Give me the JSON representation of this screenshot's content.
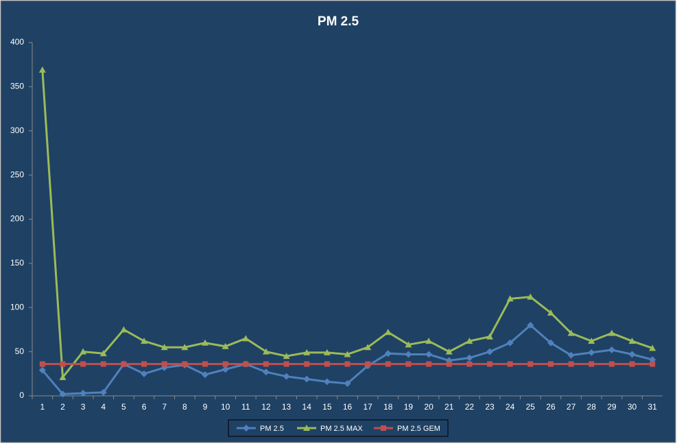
{
  "chart_data": {
    "type": "line",
    "title": "PM 2.5",
    "categories": [
      "1",
      "2",
      "3",
      "4",
      "5",
      "6",
      "7",
      "8",
      "9",
      "10",
      "11",
      "12",
      "13",
      "14",
      "15",
      "16",
      "17",
      "18",
      "19",
      "20",
      "21",
      "22",
      "23",
      "24",
      "25",
      "26",
      "27",
      "28",
      "29",
      "30",
      "31"
    ],
    "series": [
      {
        "name": "PM 2.5",
        "color": "#4f81bd",
        "marker": "diamond",
        "values": [
          29,
          2,
          3,
          4,
          36,
          25,
          32,
          35,
          24,
          30,
          36,
          27,
          22,
          19,
          16,
          14,
          34,
          48,
          47,
          47,
          40,
          43,
          50,
          60,
          80,
          60,
          46,
          49,
          52,
          47,
          41
        ]
      },
      {
        "name": "PM 2.5 MAX",
        "color": "#9bbb59",
        "marker": "triangle",
        "values": [
          369,
          21,
          50,
          48,
          75,
          62,
          55,
          55,
          60,
          56,
          65,
          50,
          45,
          49,
          49,
          47,
          55,
          72,
          58,
          62,
          50,
          62,
          67,
          110,
          112,
          94,
          71,
          62,
          71,
          62,
          54
        ]
      },
      {
        "name": "PM 2.5 GEM",
        "color": "#c0504d",
        "marker": "square",
        "values": [
          36,
          36,
          36,
          36,
          36,
          36,
          36,
          36,
          36,
          36,
          36,
          36,
          36,
          36,
          36,
          36,
          36,
          36,
          36,
          36,
          36,
          36,
          36,
          36,
          36,
          36,
          36,
          36,
          36,
          36,
          36
        ]
      }
    ],
    "ylim": [
      0,
      400
    ],
    "yticks": [
      0,
      50,
      100,
      150,
      200,
      250,
      300,
      350,
      400
    ],
    "grid": false,
    "legend": "bottom"
  }
}
